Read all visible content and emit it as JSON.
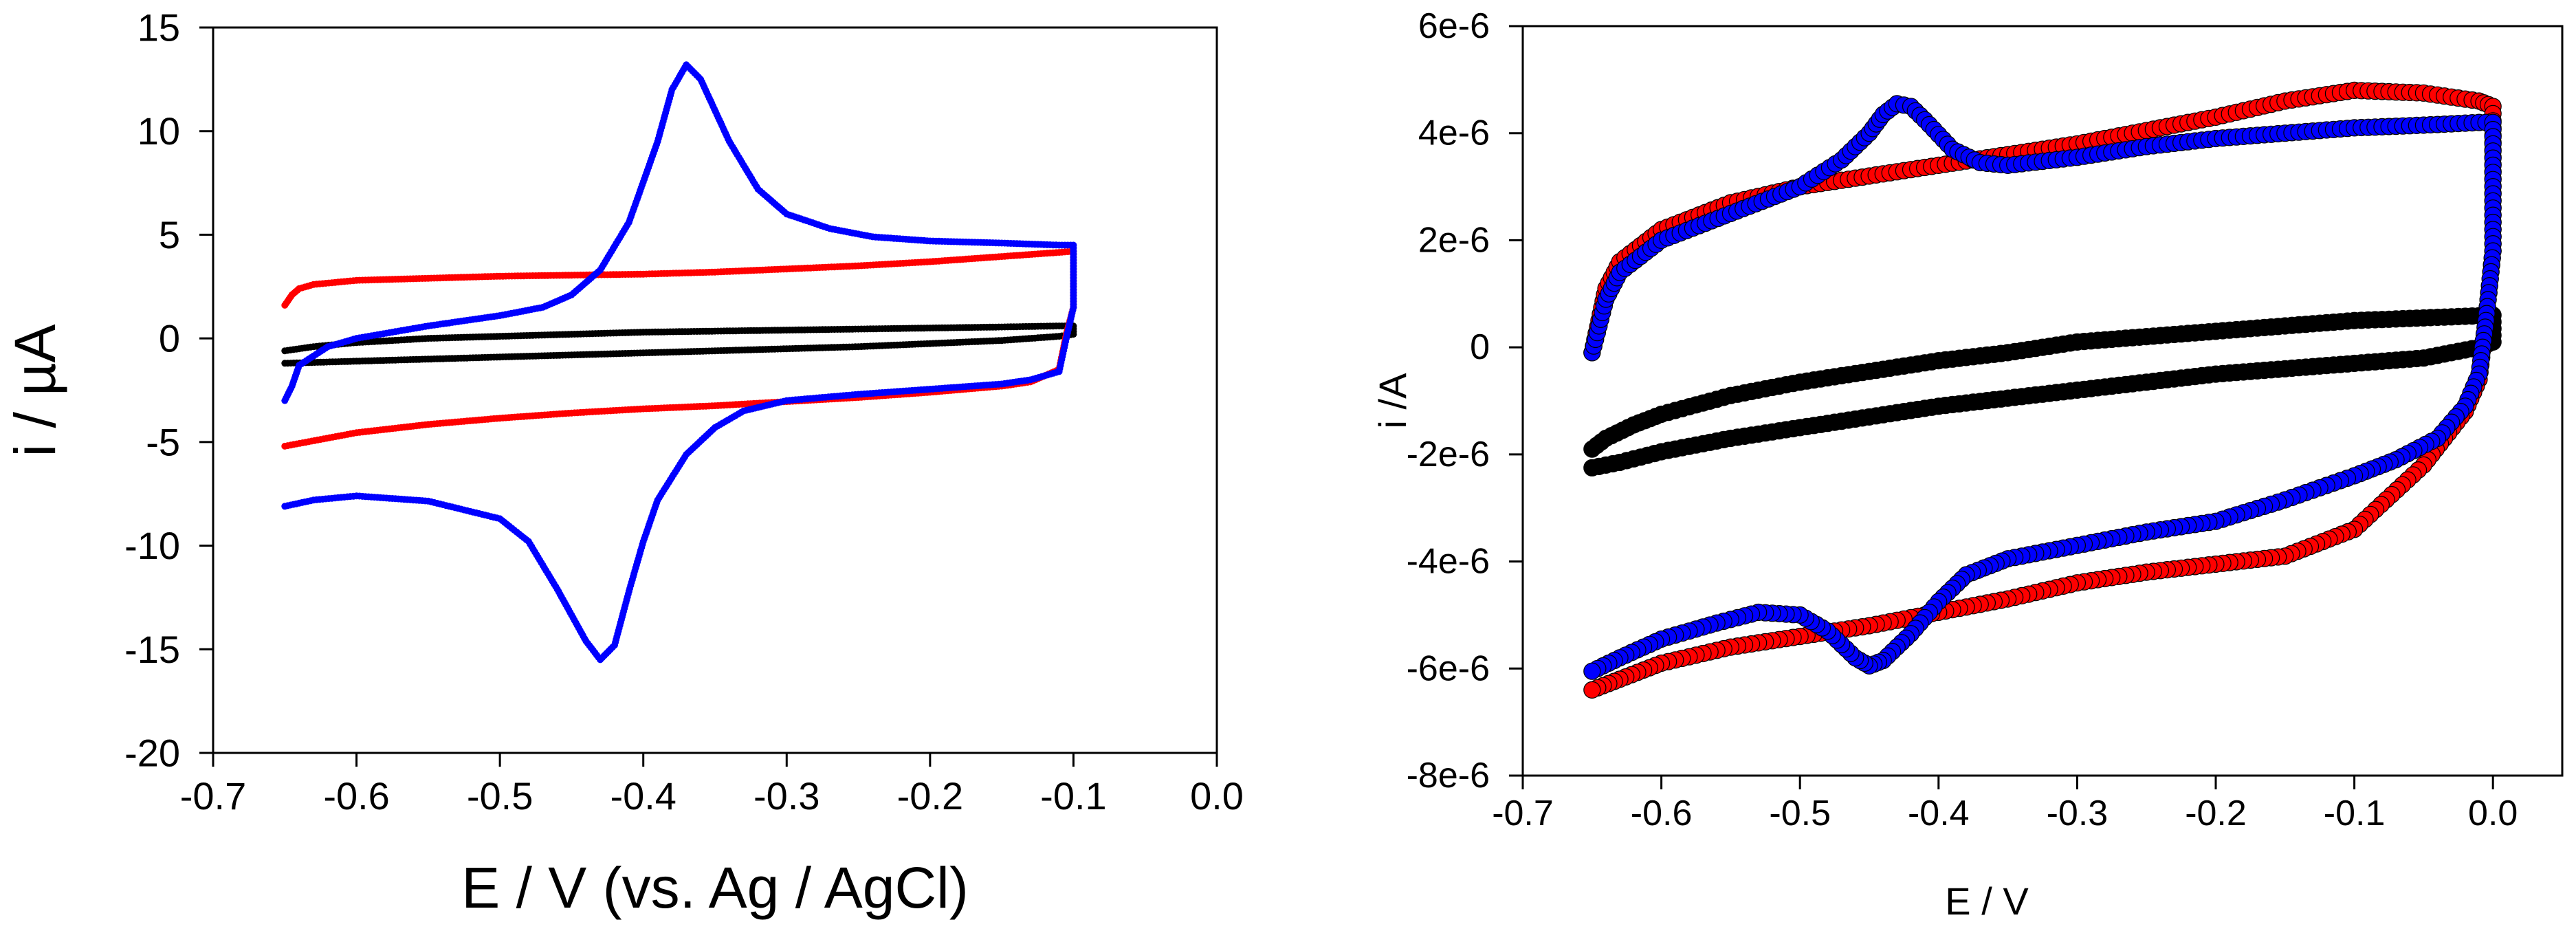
{
  "chart_data": [
    {
      "type": "scatter",
      "panel": "left",
      "title": "",
      "xlabel": "E / V (vs. Ag / AgCl)",
      "ylabel": "i / µA",
      "xlim": [
        -0.7,
        0.0
      ],
      "ylim": [
        -20,
        15
      ],
      "xticks": [
        -0.7,
        -0.6,
        -0.5,
        -0.4,
        -0.3,
        -0.2,
        -0.1,
        0.0
      ],
      "xtick_labels": [
        "-0.7",
        "-0.6",
        "-0.5",
        "-0.4",
        "-0.3",
        "-0.2",
        "-0.1",
        "0.0"
      ],
      "yticks": [
        -20,
        -15,
        -10,
        -5,
        0,
        5,
        10,
        15
      ],
      "ytick_labels": [
        "-20",
        "-15",
        "-10",
        "-5",
        "0",
        "5",
        "10",
        "15"
      ],
      "grid": false,
      "legend": "none",
      "series": [
        {
          "name": "black",
          "color": "#000000",
          "x": [
            -0.65,
            -0.63,
            -0.6,
            -0.55,
            -0.5,
            -0.45,
            -0.4,
            -0.35,
            -0.3,
            -0.25,
            -0.2,
            -0.15,
            -0.11,
            -0.1,
            -0.1,
            -0.11,
            -0.15,
            -0.2,
            -0.25,
            -0.3,
            -0.35,
            -0.4,
            -0.45,
            -0.5,
            -0.55,
            -0.6,
            -0.65
          ],
          "y": [
            -0.6,
            -0.4,
            -0.2,
            0.0,
            0.1,
            0.2,
            0.3,
            0.35,
            0.4,
            0.45,
            0.5,
            0.55,
            0.6,
            0.6,
            0.2,
            0.1,
            -0.1,
            -0.25,
            -0.4,
            -0.5,
            -0.6,
            -0.7,
            -0.8,
            -0.9,
            -1.0,
            -1.1,
            -1.2
          ]
        },
        {
          "name": "red",
          "color": "#ff0000",
          "x": [
            -0.65,
            -0.645,
            -0.64,
            -0.63,
            -0.6,
            -0.55,
            -0.5,
            -0.45,
            -0.4,
            -0.35,
            -0.3,
            -0.25,
            -0.2,
            -0.15,
            -0.11,
            -0.1,
            -0.1,
            -0.105,
            -0.11,
            -0.13,
            -0.15,
            -0.2,
            -0.25,
            -0.3,
            -0.35,
            -0.4,
            -0.45,
            -0.5,
            -0.55,
            -0.6,
            -0.65
          ],
          "y": [
            1.6,
            2.1,
            2.4,
            2.6,
            2.8,
            2.9,
            3.0,
            3.05,
            3.1,
            3.2,
            3.35,
            3.5,
            3.7,
            3.95,
            4.15,
            4.2,
            1.5,
            0.2,
            -1.5,
            -2.1,
            -2.3,
            -2.6,
            -2.85,
            -3.05,
            -3.25,
            -3.4,
            -3.6,
            -3.85,
            -4.15,
            -4.55,
            -5.2
          ]
        },
        {
          "name": "blue",
          "color": "#0000ff",
          "x": [
            -0.65,
            -0.645,
            -0.64,
            -0.62,
            -0.6,
            -0.55,
            -0.5,
            -0.47,
            -0.45,
            -0.43,
            -0.41,
            -0.39,
            -0.38,
            -0.37,
            -0.36,
            -0.34,
            -0.32,
            -0.3,
            -0.27,
            -0.24,
            -0.2,
            -0.15,
            -0.11,
            -0.1,
            -0.1,
            -0.105,
            -0.11,
            -0.13,
            -0.15,
            -0.2,
            -0.25,
            -0.3,
            -0.33,
            -0.35,
            -0.37,
            -0.39,
            -0.4,
            -0.41,
            -0.42,
            -0.43,
            -0.44,
            -0.46,
            -0.48,
            -0.5,
            -0.55,
            -0.6,
            -0.63,
            -0.65
          ],
          "y": [
            -3.0,
            -2.3,
            -1.3,
            -0.4,
            0.0,
            0.6,
            1.1,
            1.5,
            2.1,
            3.3,
            5.6,
            9.5,
            12.0,
            13.2,
            12.5,
            9.5,
            7.2,
            6.0,
            5.3,
            4.9,
            4.7,
            4.6,
            4.5,
            4.5,
            1.5,
            0.0,
            -1.6,
            -2.0,
            -2.2,
            -2.45,
            -2.7,
            -3.0,
            -3.5,
            -4.3,
            -5.6,
            -7.8,
            -9.8,
            -12.2,
            -14.8,
            -15.5,
            -14.6,
            -12.1,
            -9.8,
            -8.7,
            -7.85,
            -7.6,
            -7.8,
            -8.1
          ]
        }
      ]
    },
    {
      "type": "scatter",
      "panel": "right",
      "title": "",
      "xlabel": "E / V",
      "ylabel": "i /A",
      "xlim": [
        -0.7,
        0.05
      ],
      "ylim": [
        -8e-06,
        6e-06
      ],
      "xticks": [
        -0.7,
        -0.6,
        -0.5,
        -0.4,
        -0.3,
        -0.2,
        -0.1,
        0.0
      ],
      "xtick_labels": [
        "-0.7",
        "-0.6",
        "-0.5",
        "-0.4",
        "-0.3",
        "-0.2",
        "-0.1",
        "0.0"
      ],
      "yticks": [
        -8e-06,
        -6e-06,
        -4e-06,
        -2e-06,
        0,
        2e-06,
        4e-06,
        6e-06
      ],
      "ytick_labels": [
        "-8e-6",
        "-6e-6",
        "-4e-6",
        "-2e-6",
        "0",
        "2e-6",
        "4e-6",
        "6e-6"
      ],
      "grid": false,
      "legend": "none",
      "series": [
        {
          "name": "black",
          "color": "#000000",
          "x": [
            -0.65,
            -0.64,
            -0.62,
            -0.6,
            -0.55,
            -0.5,
            -0.45,
            -0.4,
            -0.35,
            -0.3,
            -0.25,
            -0.2,
            -0.15,
            -0.1,
            -0.05,
            0.0,
            0.0,
            -0.01,
            -0.03,
            -0.05,
            -0.1,
            -0.15,
            -0.2,
            -0.25,
            -0.3,
            -0.35,
            -0.4,
            -0.45,
            -0.5,
            -0.55,
            -0.6,
            -0.63,
            -0.65
          ],
          "y": [
            -1.9e-06,
            -1.7e-06,
            -1.45e-06,
            -1.25e-06,
            -9e-07,
            -6.5e-07,
            -4.5e-07,
            -2.5e-07,
            -1e-07,
            1e-07,
            2e-07,
            3e-07,
            4e-07,
            5e-07,
            5.5e-07,
            6e-07,
            1e-07,
            0.0,
            -1e-07,
            -2e-07,
            -3e-07,
            -4e-07,
            -5e-07,
            -6.5e-07,
            -8e-07,
            -9.5e-07,
            -1.1e-06,
            -1.3e-06,
            -1.5e-06,
            -1.7e-06,
            -1.95e-06,
            -2.15e-06,
            -2.25e-06
          ]
        },
        {
          "name": "red",
          "color": "#ff0000",
          "x": [
            -0.65,
            -0.645,
            -0.64,
            -0.63,
            -0.6,
            -0.55,
            -0.5,
            -0.45,
            -0.4,
            -0.35,
            -0.3,
            -0.25,
            -0.2,
            -0.15,
            -0.1,
            -0.05,
            -0.01,
            0.0,
            0.0,
            -0.005,
            -0.01,
            -0.02,
            -0.05,
            -0.1,
            -0.15,
            -0.2,
            -0.25,
            -0.3,
            -0.35,
            -0.4,
            -0.45,
            -0.5,
            -0.55,
            -0.6,
            -0.63,
            -0.65
          ],
          "y": [
            -1e-07,
            5e-07,
            1.1e-06,
            1.6e-06,
            2.2e-06,
            2.7e-06,
            3e-06,
            3.2e-06,
            3.4e-06,
            3.6e-06,
            3.8e-06,
            4.05e-06,
            4.3e-06,
            4.6e-06,
            4.8e-06,
            4.75e-06,
            4.6e-06,
            4.5e-06,
            1.8e-06,
            5e-07,
            -6e-07,
            -1.2e-06,
            -2.2e-06,
            -3.4e-06,
            -3.9e-06,
            -4.05e-06,
            -4.2e-06,
            -4.4e-06,
            -4.7e-06,
            -4.95e-06,
            -5.2e-06,
            -5.4e-06,
            -5.6e-06,
            -5.9e-06,
            -6.2e-06,
            -6.4e-06
          ]
        },
        {
          "name": "blue",
          "color": "#0000ff",
          "x": [
            -0.65,
            -0.645,
            -0.64,
            -0.63,
            -0.6,
            -0.55,
            -0.5,
            -0.47,
            -0.45,
            -0.44,
            -0.43,
            -0.42,
            -0.41,
            -0.39,
            -0.37,
            -0.35,
            -0.3,
            -0.25,
            -0.2,
            -0.15,
            -0.1,
            -0.05,
            -0.01,
            0.0,
            0.0,
            -0.005,
            -0.01,
            -0.02,
            -0.04,
            -0.07,
            -0.1,
            -0.15,
            -0.2,
            -0.25,
            -0.3,
            -0.35,
            -0.38,
            -0.4,
            -0.42,
            -0.44,
            -0.45,
            -0.46,
            -0.48,
            -0.5,
            -0.53,
            -0.56,
            -0.6,
            -0.63,
            -0.65
          ],
          "y": [
            -1e-07,
            4e-07,
            9e-07,
            1.4e-06,
            2e-06,
            2.5e-06,
            3e-06,
            3.5e-06,
            4e-06,
            4.35e-06,
            4.55e-06,
            4.5e-06,
            4.25e-06,
            3.7e-06,
            3.45e-06,
            3.4e-06,
            3.55e-06,
            3.75e-06,
            3.9e-06,
            4e-06,
            4.1e-06,
            4.15e-06,
            4.2e-06,
            4.2e-06,
            1.8e-06,
            5e-07,
            -5e-07,
            -1.1e-06,
            -1.7e-06,
            -2.1e-06,
            -2.4e-06,
            -2.85e-06,
            -3.25e-06,
            -3.45e-06,
            -3.7e-06,
            -3.95e-06,
            -4.25e-06,
            -4.75e-06,
            -5.35e-06,
            -5.85e-06,
            -5.95e-06,
            -5.8e-06,
            -5.3e-06,
            -5e-06,
            -4.95e-06,
            -5.15e-06,
            -5.45e-06,
            -5.8e-06,
            -6.05e-06
          ]
        }
      ]
    }
  ]
}
